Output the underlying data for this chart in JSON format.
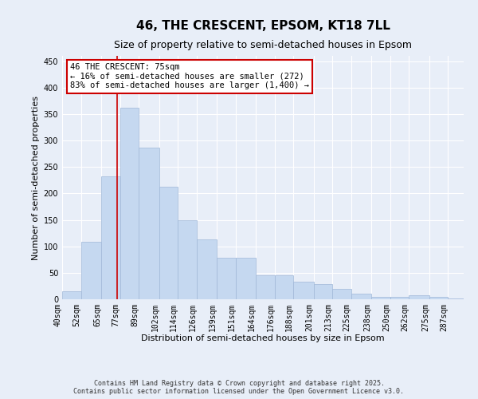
{
  "title": "46, THE CRESCENT, EPSOM, KT18 7LL",
  "subtitle": "Size of property relative to semi-detached houses in Epsom",
  "xlabel": "Distribution of semi-detached houses by size in Epsom",
  "ylabel": "Number of semi-detached properties",
  "footer_line1": "Contains HM Land Registry data © Crown copyright and database right 2025.",
  "footer_line2": "Contains public sector information licensed under the Open Government Licence v3.0.",
  "annotation_title": "46 THE CRESCENT: 75sqm",
  "annotation_line1": "← 16% of semi-detached houses are smaller (272)",
  "annotation_line2": "83% of semi-detached houses are larger (1,400) →",
  "bar_left_edges": [
    40,
    52,
    65,
    77,
    89,
    102,
    114,
    126,
    139,
    151,
    164,
    176,
    188,
    201,
    213,
    225,
    238,
    250,
    262,
    275,
    287
  ],
  "bar_heights": [
    15,
    108,
    232,
    362,
    287,
    213,
    150,
    113,
    78,
    78,
    46,
    46,
    33,
    29,
    20,
    10,
    5,
    5,
    7,
    5,
    2
  ],
  "bar_widths": [
    12,
    13,
    12,
    12,
    13,
    12,
    12,
    13,
    12,
    13,
    12,
    12,
    13,
    12,
    12,
    13,
    12,
    12,
    13,
    12,
    10
  ],
  "tick_labels": [
    "40sqm",
    "52sqm",
    "65sqm",
    "77sqm",
    "89sqm",
    "102sqm",
    "114sqm",
    "126sqm",
    "139sqm",
    "151sqm",
    "164sqm",
    "176sqm",
    "188sqm",
    "201sqm",
    "213sqm",
    "225sqm",
    "238sqm",
    "250sqm",
    "262sqm",
    "275sqm",
    "287sqm"
  ],
  "bar_color": "#c5d8f0",
  "bar_edge_color": "#a0b8d8",
  "vline_x": 75,
  "vline_color": "#cc0000",
  "ylim": [
    0,
    460
  ],
  "yticks": [
    0,
    50,
    100,
    150,
    200,
    250,
    300,
    350,
    400,
    450
  ],
  "background_color": "#e8eef8",
  "plot_bg_color": "#e8eef8",
  "grid_color": "#ffffff",
  "title_fontsize": 11,
  "subtitle_fontsize": 9,
  "axis_label_fontsize": 8,
  "tick_fontsize": 7,
  "annotation_box_color": "#ffffff",
  "annotation_box_edgecolor": "#cc0000",
  "annotation_fontsize": 7.5,
  "footer_fontsize": 6
}
